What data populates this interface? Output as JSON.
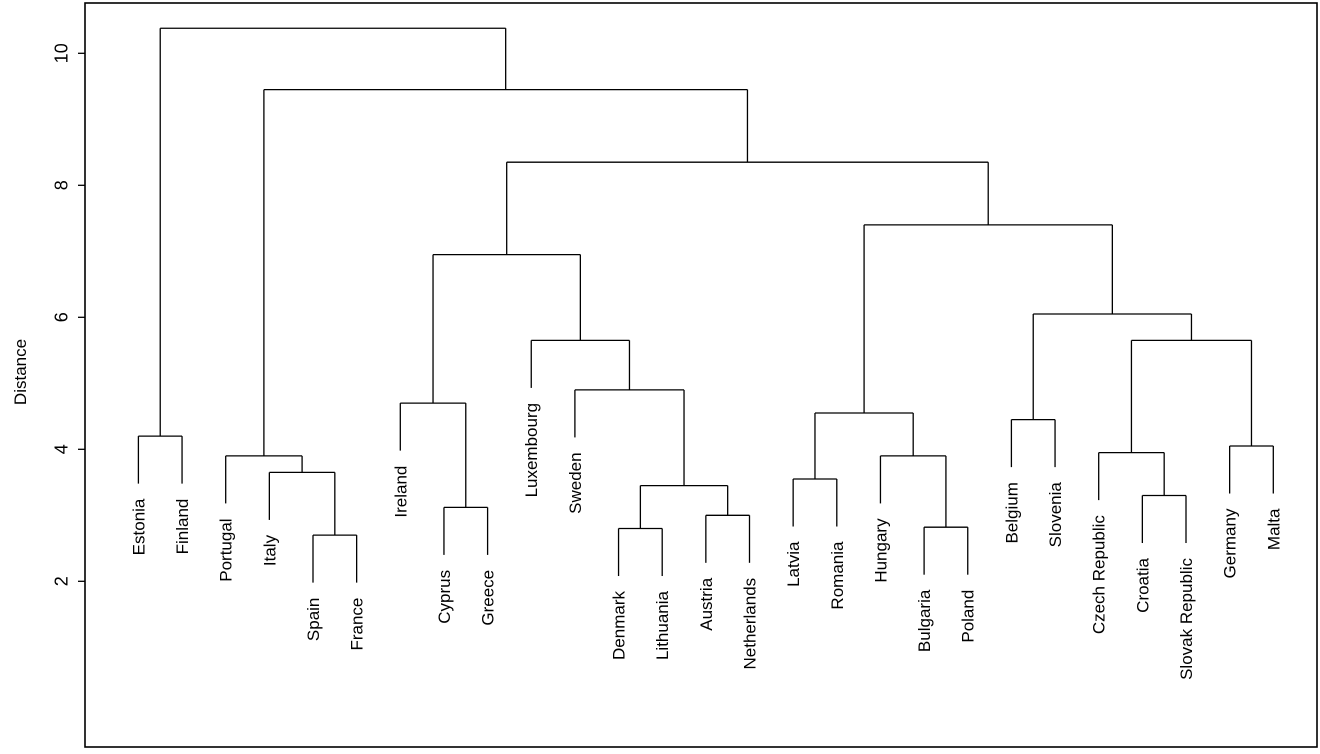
{
  "chart_data": {
    "type": "dendrogram",
    "title": "",
    "xlabel": "",
    "ylabel": "Distance",
    "yticks": [
      2,
      4,
      6,
      8,
      10
    ],
    "ylim_shown": [
      2,
      10
    ],
    "grid": false,
    "legend": "none",
    "line_color": "#000000",
    "background": "#ffffff",
    "hang": 0.72,
    "leaf_order": [
      "Estonia",
      "Finland",
      "Portugal",
      "Italy",
      "Spain",
      "France",
      "Ireland",
      "Cyprus",
      "Greece",
      "Luxembourg",
      "Sweden",
      "Denmark",
      "Lithuania",
      "Austria",
      "Netherlands",
      "Latvia",
      "Romania",
      "Hungary",
      "Bulgaria",
      "Poland",
      "Belgium",
      "Slovenia",
      "Czech Republic",
      "Croatia",
      "Slovak Republic",
      "Germany",
      "Malta"
    ],
    "tree": {
      "h": 10.38,
      "c": [
        {
          "h": 4.2,
          "c": [
            {
              "leaf": "Estonia"
            },
            {
              "leaf": "Finland"
            }
          ]
        },
        {
          "h": 9.45,
          "c": [
            {
              "h": 3.9,
              "c": [
                {
                  "leaf": "Portugal"
                },
                {
                  "h": 3.65,
                  "c": [
                    {
                      "leaf": "Italy"
                    },
                    {
                      "h": 2.7,
                      "c": [
                        {
                          "leaf": "Spain"
                        },
                        {
                          "leaf": "France"
                        }
                      ]
                    }
                  ]
                }
              ]
            },
            {
              "h": 8.35,
              "c": [
                {
                  "h": 6.95,
                  "c": [
                    {
                      "h": 4.7,
                      "c": [
                        {
                          "leaf": "Ireland"
                        },
                        {
                          "h": 3.12,
                          "c": [
                            {
                              "leaf": "Cyprus"
                            },
                            {
                              "leaf": "Greece"
                            }
                          ]
                        }
                      ]
                    },
                    {
                      "h": 5.65,
                      "c": [
                        {
                          "leaf": "Luxembourg"
                        },
                        {
                          "h": 4.9,
                          "c": [
                            {
                              "leaf": "Sweden"
                            },
                            {
                              "h": 3.45,
                              "c": [
                                {
                                  "h": 2.8,
                                  "c": [
                                    {
                                      "leaf": "Denmark"
                                    },
                                    {
                                      "leaf": "Lithuania"
                                    }
                                  ]
                                },
                                {
                                  "h": 3.0,
                                  "c": [
                                    {
                                      "leaf": "Austria"
                                    },
                                    {
                                      "leaf": "Netherlands"
                                    }
                                  ]
                                }
                              ]
                            }
                          ]
                        }
                      ]
                    }
                  ]
                },
                {
                  "h": 7.4,
                  "c": [
                    {
                      "h": 4.55,
                      "c": [
                        {
                          "h": 3.55,
                          "c": [
                            {
                              "leaf": "Latvia"
                            },
                            {
                              "leaf": "Romania"
                            }
                          ]
                        },
                        {
                          "h": 3.9,
                          "c": [
                            {
                              "leaf": "Hungary"
                            },
                            {
                              "h": 2.82,
                              "c": [
                                {
                                  "leaf": "Bulgaria"
                                },
                                {
                                  "leaf": "Poland"
                                }
                              ]
                            }
                          ]
                        }
                      ]
                    },
                    {
                      "h": 6.05,
                      "c": [
                        {
                          "h": 4.45,
                          "c": [
                            {
                              "leaf": "Belgium"
                            },
                            {
                              "leaf": "Slovenia"
                            }
                          ]
                        },
                        {
                          "h": 5.65,
                          "c": [
                            {
                              "h": 3.95,
                              "c": [
                                {
                                  "leaf": "Czech Republic"
                                },
                                {
                                  "h": 3.3,
                                  "c": [
                                    {
                                      "leaf": "Croatia"
                                    },
                                    {
                                      "leaf": "Slovak Republic"
                                    }
                                  ]
                                }
                              ]
                            },
                            {
                              "h": 4.05,
                              "c": [
                                {
                                  "leaf": "Germany"
                                },
                                {
                                  "leaf": "Malta"
                                }
                              ]
                            }
                          ]
                        }
                      ]
                    }
                  ]
                }
              ]
            }
          ]
        }
      ]
    }
  }
}
